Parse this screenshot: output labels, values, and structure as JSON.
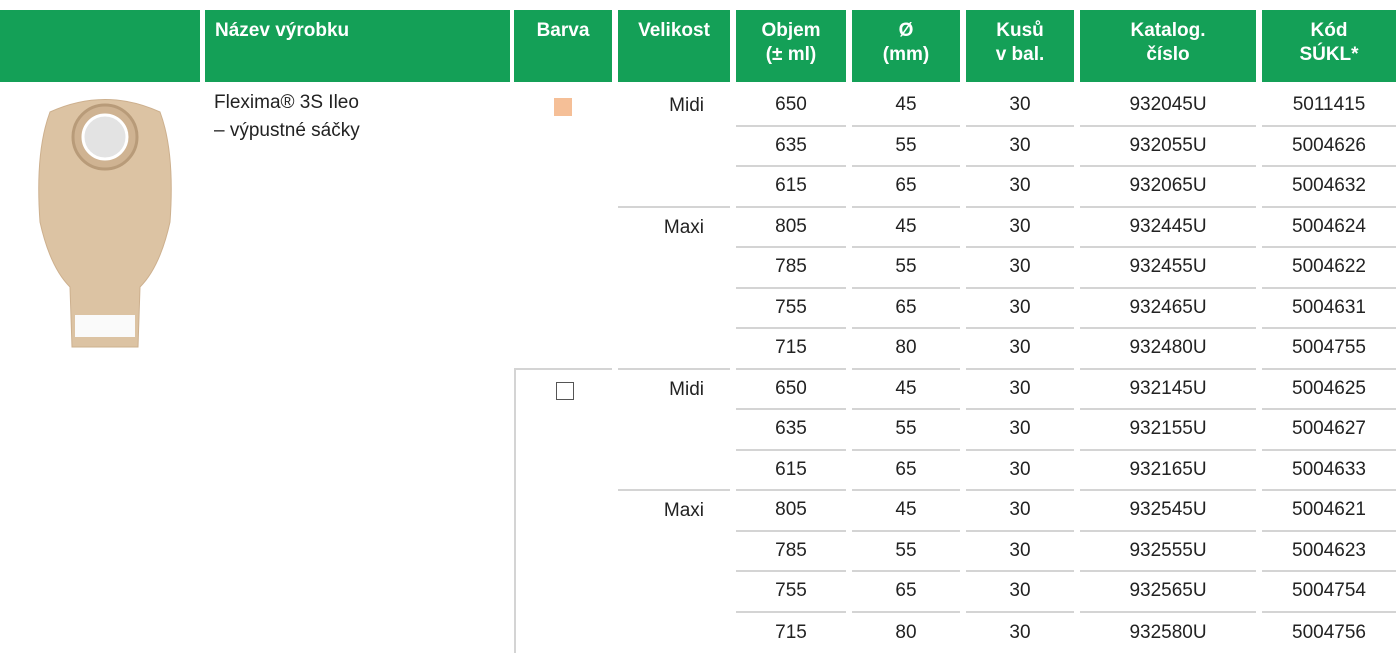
{
  "header": {
    "columns": [
      [
        "Název výrobku"
      ],
      [
        "Barva"
      ],
      [
        "Velikost"
      ],
      [
        "Objem",
        "(± ml)"
      ],
      [
        "Ø",
        "(mm)"
      ],
      [
        "Kusů",
        "v bal."
      ],
      [
        "Katalog.",
        "číslo"
      ],
      [
        "Kód",
        "SÚKL*"
      ]
    ]
  },
  "product": {
    "name_lines": [
      "Flexima® 3S Ileo",
      "– výpustné sáčky"
    ]
  },
  "colors": [
    {
      "swatch": "#f5bf97",
      "sizes": [
        {
          "label": "Midi",
          "rows": [
            [
              650,
              45,
              30,
              "932045U",
              5011415
            ],
            [
              635,
              55,
              30,
              "932055U",
              5004626
            ],
            [
              615,
              65,
              30,
              "932065U",
              5004632
            ]
          ]
        },
        {
          "label": "Maxi",
          "rows": [
            [
              805,
              45,
              30,
              "932445U",
              5004624
            ],
            [
              785,
              55,
              30,
              "932455U",
              5004622
            ],
            [
              755,
              65,
              30,
              "932465U",
              5004631
            ],
            [
              715,
              80,
              30,
              "932480U",
              5004755
            ]
          ]
        }
      ]
    },
    {
      "swatch": "#ffffff",
      "sizes": [
        {
          "label": "Midi",
          "rows": [
            [
              650,
              45,
              30,
              "932145U",
              5004625
            ],
            [
              635,
              55,
              30,
              "932155U",
              5004627
            ],
            [
              615,
              65,
              30,
              "932165U",
              5004633
            ]
          ]
        },
        {
          "label": "Maxi",
          "rows": [
            [
              805,
              45,
              30,
              "932545U",
              5004621
            ],
            [
              785,
              55,
              30,
              "932555U",
              5004623
            ],
            [
              755,
              65,
              30,
              "932565U",
              5004754
            ],
            [
              715,
              80,
              30,
              "932580U",
              5004756
            ]
          ]
        }
      ]
    }
  ]
}
